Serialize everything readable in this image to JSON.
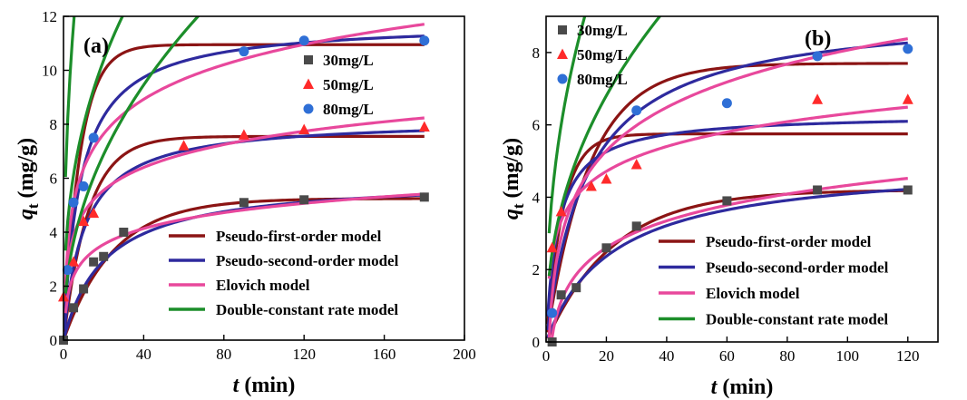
{
  "chart_data": [
    {
      "type": "line",
      "panel_label": "(a)",
      "xlabel": "t (min)",
      "ylabel": "qt (mg/g)",
      "xlim": [
        0,
        200
      ],
      "ylim": [
        0,
        12
      ],
      "xticks": [
        "0",
        "40",
        "80",
        "120",
        "160",
        "200"
      ],
      "yticks": [
        "0",
        "2",
        "4",
        "6",
        "8",
        "10",
        "12"
      ],
      "scatter_series": [
        {
          "name": "30mg/L",
          "marker": "square",
          "color": "#4a4a4a",
          "x": [
            0,
            5,
            10,
            15,
            20,
            30,
            90,
            120,
            180
          ],
          "y": [
            0.0,
            1.2,
            1.9,
            2.9,
            3.1,
            4.0,
            5.1,
            5.2,
            5.3
          ]
        },
        {
          "name": "50mg/L",
          "marker": "triangle",
          "color": "#ff2a2a",
          "x": [
            0,
            5,
            10,
            15,
            60,
            90,
            120,
            180
          ],
          "y": [
            1.6,
            2.9,
            4.4,
            4.7,
            7.2,
            7.6,
            7.8,
            7.9
          ]
        },
        {
          "name": "80mg/L",
          "marker": "circle",
          "color": "#2f6fd6",
          "x": [
            2,
            5,
            10,
            15,
            90,
            120,
            180
          ],
          "y": [
            2.6,
            5.1,
            5.7,
            7.5,
            10.7,
            11.1,
            11.1
          ]
        }
      ],
      "model_series": [
        {
          "name": "Pseudo-first-order model",
          "color": "#8b1414",
          "kind": "pfo",
          "params": [
            [
              5.25,
              0.04
            ],
            [
              7.55,
              0.08
            ],
            [
              10.95,
              0.12
            ]
          ]
        },
        {
          "name": "Pseudo-second-order model",
          "color": "#2e2a9e",
          "kind": "pso",
          "params": [
            [
              6.0,
              0.008
            ],
            [
              8.2,
              0.012
            ],
            [
              11.8,
              0.01
            ]
          ]
        },
        {
          "name": "Elovich model",
          "color": "#e8489c",
          "kind": "elovich",
          "params": [
            [
              1.0,
              0.85
            ],
            [
              1.9,
              1.22
            ],
            [
              2.1,
              1.85
            ]
          ]
        },
        {
          "name": "Double-constant rate model",
          "color": "#1c8e2a",
          "kind": "dcr",
          "params": [
            [
              0.55,
              0.46
            ],
            [
              1.2,
              0.38
            ],
            [
              1.8,
              0.41
            ]
          ]
        }
      ]
    },
    {
      "type": "line",
      "panel_label": "(b)",
      "xlabel": "t (min)",
      "ylabel": "qt (mg/g)",
      "xlim": [
        0,
        130
      ],
      "ylim": [
        0,
        9
      ],
      "xticks": [
        "0",
        "20",
        "40",
        "60",
        "80",
        "100",
        "120"
      ],
      "yticks": [
        "0",
        "2",
        "4",
        "6",
        "8"
      ],
      "scatter_series": [
        {
          "name": "30mg/L",
          "marker": "square",
          "color": "#4a4a4a",
          "x": [
            2,
            5,
            10,
            20,
            30,
            60,
            90,
            120
          ],
          "y": [
            0.0,
            1.3,
            1.5,
            2.6,
            3.2,
            3.9,
            4.2,
            4.2
          ]
        },
        {
          "name": "50mg/L",
          "marker": "triangle",
          "color": "#ff2a2a",
          "x": [
            2,
            5,
            15,
            20,
            30,
            90,
            120
          ],
          "y": [
            2.6,
            3.6,
            4.3,
            4.5,
            4.9,
            6.7,
            6.7
          ]
        },
        {
          "name": "80mg/L",
          "marker": "circle",
          "color": "#2f6fd6",
          "x": [
            2,
            30,
            60,
            90,
            120
          ],
          "y": [
            0.8,
            6.4,
            6.6,
            7.9,
            8.1
          ]
        }
      ],
      "model_series": [
        {
          "name": "Pseudo-first-order model",
          "color": "#8b1414",
          "kind": "pfo",
          "params": [
            [
              4.2,
              0.045
            ],
            [
              5.75,
              0.18
            ],
            [
              7.7,
              0.07
            ]
          ]
        },
        {
          "name": "Pseudo-second-order model",
          "color": "#2e2a9e",
          "kind": "pso",
          "params": [
            [
              5.0,
              0.009
            ],
            [
              6.3,
              0.04
            ],
            [
              9.2,
              0.008
            ]
          ]
        },
        {
          "name": "Elovich model",
          "color": "#e8489c",
          "kind": "elovich",
          "params": [
            [
              -0.6,
              1.07
            ],
            [
              1.75,
              0.99
            ],
            [
              0.1,
              1.73
            ]
          ]
        },
        {
          "name": "Double-constant rate model",
          "color": "#1c8e2a",
          "kind": "dcr",
          "params": [
            [
              0.6,
              0.44
            ],
            [
              2.2,
              0.23
            ],
            [
              1.1,
              0.43
            ]
          ]
        }
      ]
    }
  ]
}
